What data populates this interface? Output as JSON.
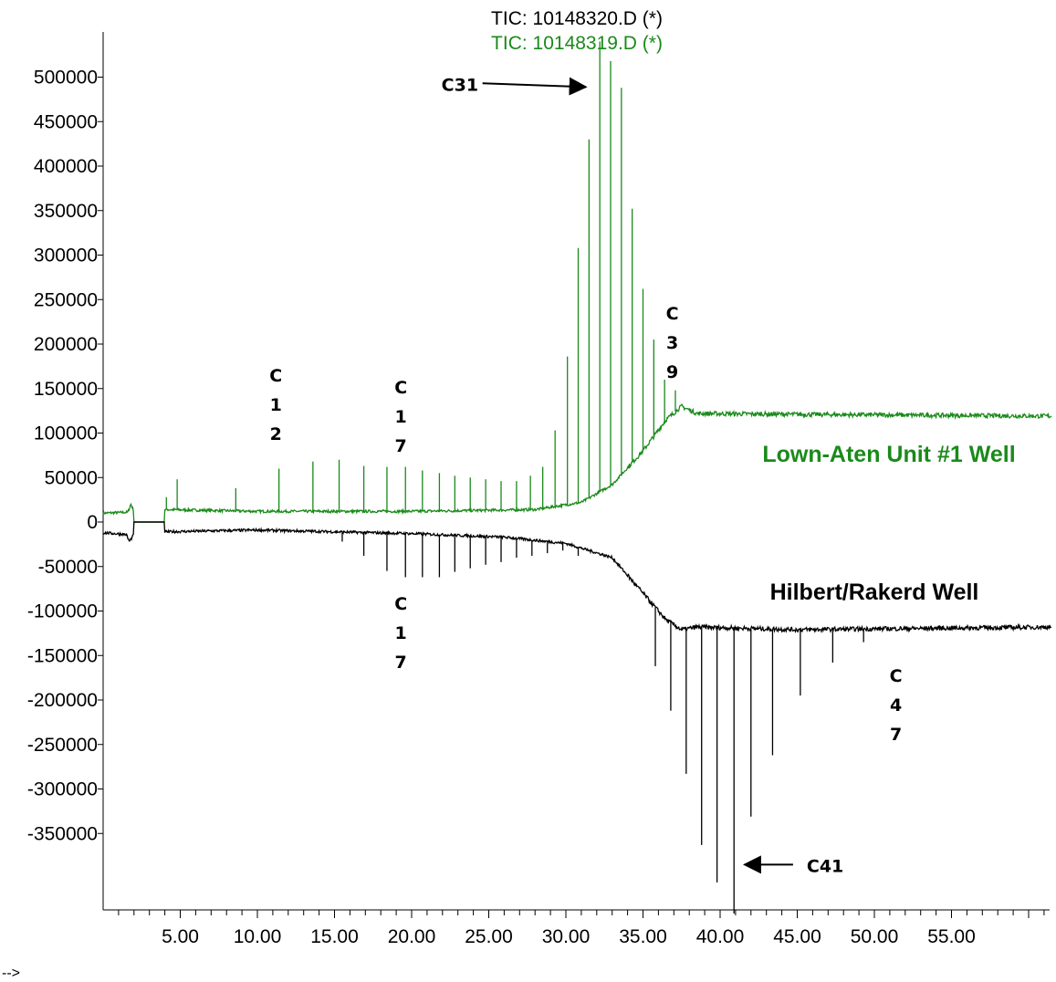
{
  "chart_data": {
    "type": "line",
    "legend": {
      "entries": [
        {
          "label": "TIC: 10148320.D (*)",
          "color": "#000000"
        },
        {
          "label": "TIC: 10148319.D (*)",
          "color": "#1a8a1a"
        }
      ],
      "placement": "top-center"
    },
    "xlim": [
      0.0,
      61.5
    ],
    "ylim": [
      -440000,
      540000
    ],
    "x_ticks": [
      "5.00",
      "10.00",
      "15.00",
      "20.00",
      "25.00",
      "30.00",
      "35.00",
      "40.00",
      "45.00",
      "50.00",
      "55.00"
    ],
    "x_tick_values": [
      5,
      10,
      15,
      20,
      25,
      30,
      35,
      40,
      45,
      50,
      55
    ],
    "y_ticks": [
      "500000",
      "450000",
      "400000",
      "350000",
      "300000",
      "250000",
      "200000",
      "150000",
      "100000",
      "50000",
      "0",
      "-50000",
      "-100000",
      "-150000",
      "-200000",
      "-250000",
      "-300000",
      "-350000"
    ],
    "y_tick_values": [
      500000,
      450000,
      400000,
      350000,
      300000,
      250000,
      200000,
      150000,
      100000,
      50000,
      0,
      -50000,
      -100000,
      -150000,
      -200000,
      -250000,
      -300000,
      -350000
    ],
    "grid": false,
    "series": [
      {
        "name": "TIC: 10148319.D (*)",
        "color": "#1a8a1a",
        "label": "Lown-Aten Unit #1 Well",
        "baseline": [
          [
            0.0,
            10000
          ],
          [
            1.6,
            11000
          ],
          [
            1.8,
            20000
          ],
          [
            2.0,
            12000
          ],
          [
            4.0,
            14000
          ],
          [
            10.0,
            12000
          ],
          [
            20.0,
            12000
          ],
          [
            28.0,
            14000
          ],
          [
            31.0,
            22000
          ],
          [
            33.0,
            42000
          ],
          [
            35.0,
            80000
          ],
          [
            36.5,
            115000
          ],
          [
            37.5,
            130000
          ],
          [
            38.5,
            122000
          ],
          [
            45.0,
            121000
          ],
          [
            61.5,
            119000
          ]
        ],
        "peaks": [
          [
            4.1,
            28000
          ],
          [
            4.8,
            48000
          ],
          [
            8.6,
            38000
          ],
          [
            11.4,
            60000
          ],
          [
            13.6,
            68000
          ],
          [
            15.3,
            70000
          ],
          [
            16.9,
            63000
          ],
          [
            18.4,
            62000
          ],
          [
            19.6,
            62000
          ],
          [
            20.7,
            58000
          ],
          [
            21.8,
            55000
          ],
          [
            22.8,
            52000
          ],
          [
            23.8,
            50000
          ],
          [
            24.8,
            48000
          ],
          [
            25.8,
            46000
          ],
          [
            26.8,
            46000
          ],
          [
            27.7,
            52000
          ],
          [
            28.5,
            62000
          ],
          [
            29.3,
            103000
          ],
          [
            30.1,
            186000
          ],
          [
            30.8,
            308000
          ],
          [
            31.5,
            430000
          ],
          [
            32.2,
            540000
          ],
          [
            32.9,
            518000
          ],
          [
            33.6,
            488000
          ],
          [
            34.3,
            352000
          ],
          [
            35.0,
            262000
          ],
          [
            35.7,
            205000
          ],
          [
            36.4,
            160000
          ],
          [
            37.1,
            148000
          ]
        ]
      },
      {
        "name": "TIC: 10148320.D (*)",
        "color": "#000000",
        "label": "Hilbert/Rakerd Well",
        "baseline": [
          [
            0.0,
            -12000
          ],
          [
            1.5,
            -14000
          ],
          [
            1.7,
            -22000
          ],
          [
            2.0,
            -14000
          ],
          [
            4.0,
            -11000
          ],
          [
            10.0,
            -9000
          ],
          [
            20.0,
            -13000
          ],
          [
            26.0,
            -17000
          ],
          [
            30.0,
            -24000
          ],
          [
            33.0,
            -40000
          ],
          [
            35.0,
            -80000
          ],
          [
            36.5,
            -110000
          ],
          [
            37.5,
            -121000
          ],
          [
            38.5,
            -118000
          ],
          [
            45.0,
            -121000
          ],
          [
            61.5,
            -118000
          ]
        ],
        "peaks": [
          [
            15.5,
            -22000
          ],
          [
            16.9,
            -38000
          ],
          [
            18.4,
            -55000
          ],
          [
            19.6,
            -62000
          ],
          [
            20.7,
            -62000
          ],
          [
            21.8,
            -62000
          ],
          [
            22.8,
            -56000
          ],
          [
            23.8,
            -52000
          ],
          [
            24.8,
            -48000
          ],
          [
            25.8,
            -45000
          ],
          [
            26.8,
            -40000
          ],
          [
            27.8,
            -38000
          ],
          [
            28.8,
            -35000
          ],
          [
            29.8,
            -32000
          ],
          [
            30.8,
            -38000
          ],
          [
            35.8,
            -162000
          ],
          [
            36.8,
            -212000
          ],
          [
            37.8,
            -283000
          ],
          [
            38.8,
            -363000
          ],
          [
            39.8,
            -405000
          ],
          [
            40.9,
            -440000
          ],
          [
            42.0,
            -331000
          ],
          [
            43.4,
            -262000
          ],
          [
            45.2,
            -195000
          ],
          [
            47.3,
            -158000
          ],
          [
            49.3,
            -135000
          ]
        ]
      }
    ],
    "annotations": [
      {
        "text": "C31",
        "arrow_to_x": 31.4,
        "arrow_to_y": 491000,
        "arrow": "right"
      },
      {
        "text": "C41",
        "arrow_to_x": 41.0,
        "arrow_to_y": -385000,
        "arrow": "left"
      },
      {
        "text": "C\n1\n2",
        "x": 11.2
      },
      {
        "text": "C\n1\n7",
        "x": 19.3
      },
      {
        "text": "C\n3\n9",
        "x": 36.9
      },
      {
        "text": "C\n1\n7",
        "x": 19.3,
        "below": true
      },
      {
        "text": "C\n4\n7",
        "x": 51.4,
        "below": true
      }
    ]
  },
  "stray_text": "-->"
}
